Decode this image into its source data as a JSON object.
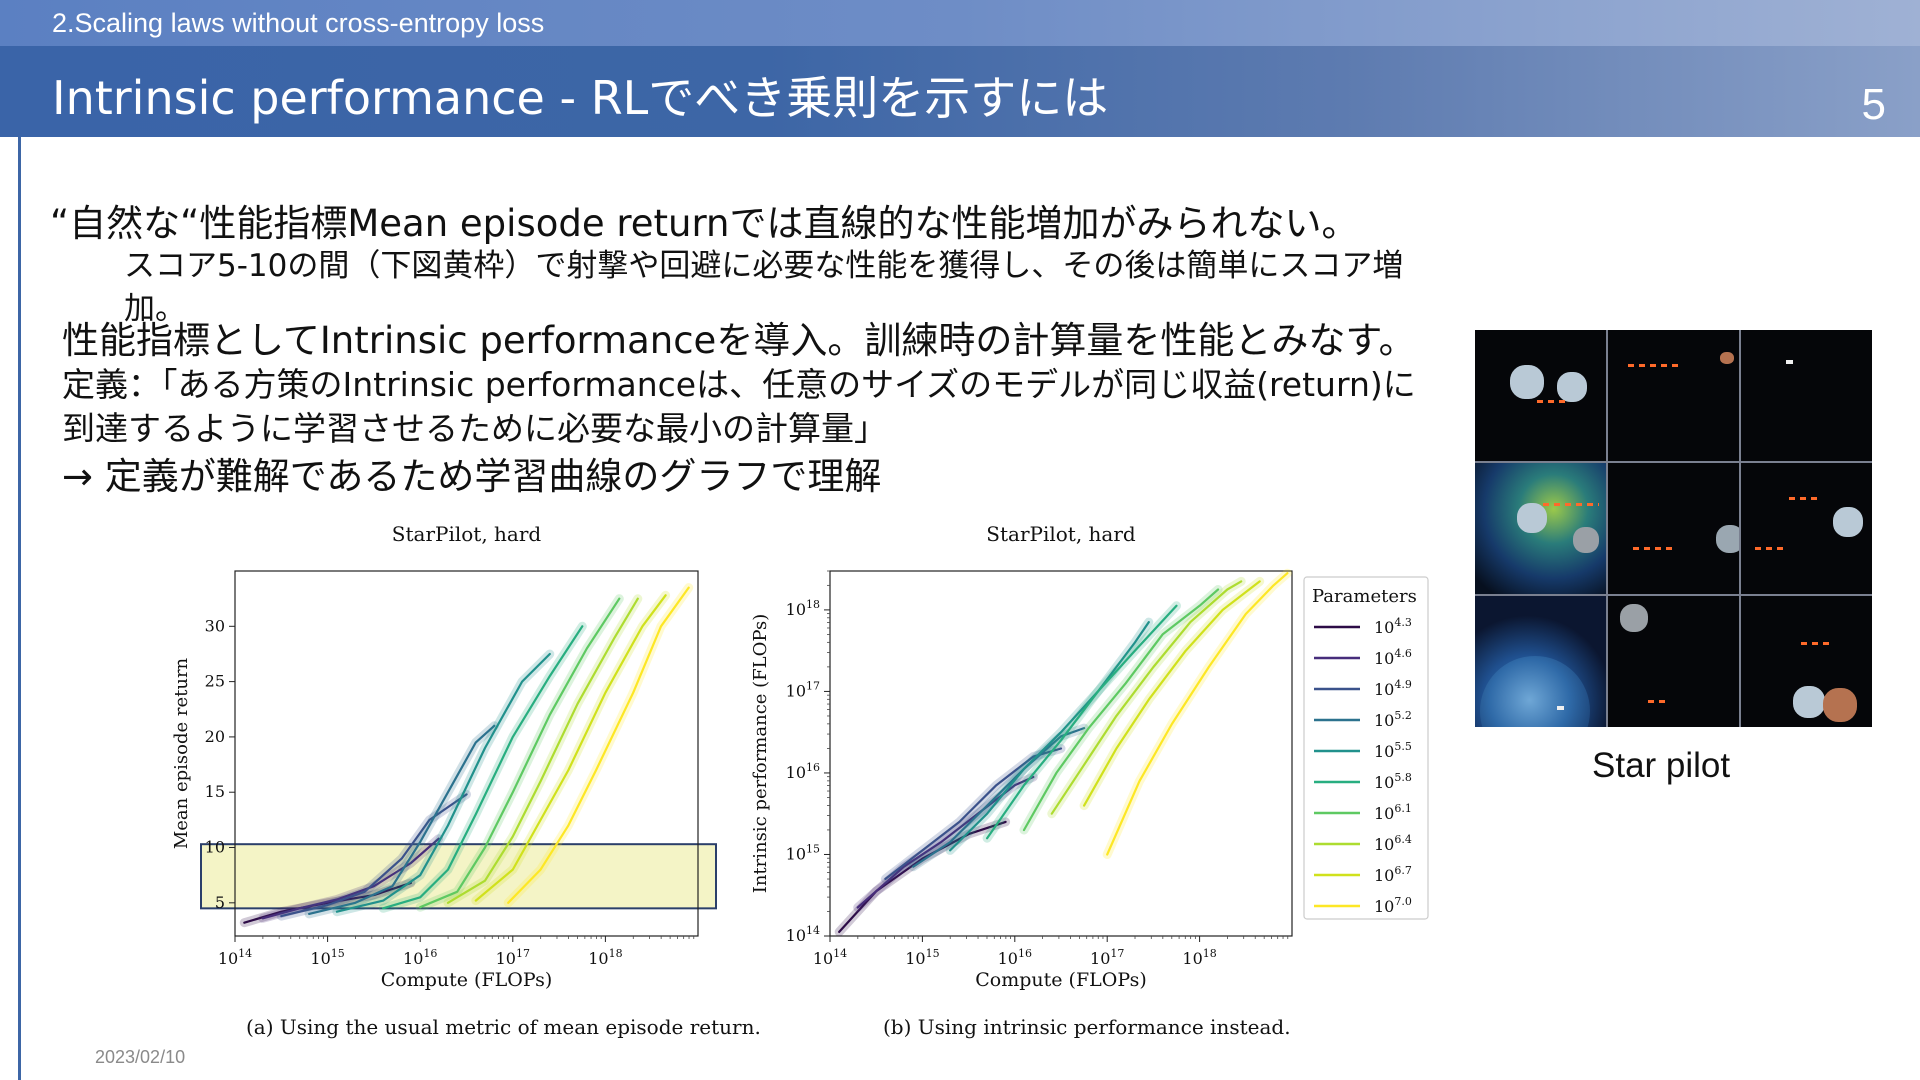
{
  "header": {
    "section": "2.Scaling laws without cross-entropy loss",
    "title": "Intrinsic performance - RLでべき乗則を示すには",
    "page_number": "5"
  },
  "body": {
    "line1": "“自然な“性能指標Mean episode returnでは直線的な性能増加がみられない。",
    "line2a": "スコア5-10の間（下図黄枠）で射撃や回避に必要な性能を獲得し、その後は簡単にスコア増",
    "line2b": "加。",
    "line3": "性能指標としてIntrinsic performanceを導入。訓練時の計算量を性能とみなす。",
    "line4": "定義：「ある方策のIntrinsic performanceは、任意のサイズのモデルが同じ収益(return)に",
    "line5": "到達するように学習させるために必要な最小の計算量」",
    "line6": "→ 定義が難解であるため学習曲線のグラフで理解"
  },
  "figure_a": {
    "caption": "(a) Using the usual metric of mean episode return."
  },
  "figure_b": {
    "caption": "(b) Using intrinsic performance instead."
  },
  "footer": {
    "date": "2023/02/10"
  },
  "game_image": {
    "label": "Star pilot"
  },
  "chart_data": [
    {
      "type": "line",
      "title": "StarPilot, hard",
      "xlabel": "Compute (FLOPs)",
      "ylabel": "Mean episode return",
      "x_scale": "log",
      "xlim": [
        100000000000000.0,
        1e+19
      ],
      "ylim": [
        2,
        35
      ],
      "x_ticks": [
        "10^14",
        "10^15",
        "10^16",
        "10^17",
        "10^18"
      ],
      "y_ticks": [
        5,
        10,
        15,
        20,
        25,
        30
      ],
      "highlight_band": {
        "y_from": 4.5,
        "y_to": 10.3,
        "color": "#f4f4c6"
      },
      "series": [
        {
          "name": "10^4.3",
          "color": "#2d0c47",
          "points": [
            [
              14.1,
              3.2
            ],
            [
              14.5,
              4.2
            ],
            [
              15.0,
              5.0
            ],
            [
              15.5,
              5.7
            ],
            [
              15.9,
              6.8
            ]
          ]
        },
        {
          "name": "10^4.6",
          "color": "#472d7b",
          "points": [
            [
              14.3,
              3.6
            ],
            [
              14.7,
              4.5
            ],
            [
              15.1,
              5.3
            ],
            [
              15.5,
              6.5
            ],
            [
              15.9,
              8.6
            ],
            [
              16.2,
              10.8
            ]
          ]
        },
        {
          "name": "10^4.9",
          "color": "#3b528b",
          "points": [
            [
              14.5,
              3.8
            ],
            [
              15.0,
              4.8
            ],
            [
              15.4,
              6.0
            ],
            [
              15.8,
              9.0
            ],
            [
              16.1,
              12.5
            ],
            [
              16.5,
              14.8
            ]
          ]
        },
        {
          "name": "10^5.2",
          "color": "#2c728e",
          "points": [
            [
              14.8,
              4.0
            ],
            [
              15.3,
              5.0
            ],
            [
              15.7,
              6.5
            ],
            [
              16.0,
              10.5
            ],
            [
              16.3,
              15.0
            ],
            [
              16.6,
              19.5
            ],
            [
              16.8,
              21.0
            ]
          ]
        },
        {
          "name": "10^5.5",
          "color": "#21918c",
          "points": [
            [
              15.1,
              4.2
            ],
            [
              15.6,
              5.2
            ],
            [
              16.0,
              7.5
            ],
            [
              16.3,
              12.0
            ],
            [
              16.7,
              19.0
            ],
            [
              17.1,
              25.0
            ],
            [
              17.4,
              27.5
            ]
          ]
        },
        {
          "name": "10^5.8",
          "color": "#28ae80",
          "points": [
            [
              15.6,
              4.5
            ],
            [
              16.0,
              5.5
            ],
            [
              16.3,
              8.0
            ],
            [
              16.6,
              13.0
            ],
            [
              17.0,
              20.0
            ],
            [
              17.4,
              25.5
            ],
            [
              17.75,
              30.0
            ]
          ]
        },
        {
          "name": "10^6.1",
          "color": "#5ec962",
          "points": [
            [
              16.0,
              4.6
            ],
            [
              16.4,
              6.0
            ],
            [
              16.7,
              10.0
            ],
            [
              17.0,
              15.0
            ],
            [
              17.4,
              22.0
            ],
            [
              17.8,
              28.0
            ],
            [
              18.15,
              32.5
            ]
          ]
        },
        {
          "name": "10^6.4",
          "color": "#addc30",
          "points": [
            [
              16.3,
              5.0
            ],
            [
              16.7,
              7.0
            ],
            [
              17.0,
              11.0
            ],
            [
              17.3,
              16.0
            ],
            [
              17.7,
              23.0
            ],
            [
              18.1,
              29.0
            ],
            [
              18.35,
              32.5
            ]
          ]
        },
        {
          "name": "10^6.7",
          "color": "#d0e11c",
          "points": [
            [
              16.6,
              5.2
            ],
            [
              17.0,
              8.0
            ],
            [
              17.3,
              12.5
            ],
            [
              17.6,
              17.0
            ],
            [
              18.0,
              24.0
            ],
            [
              18.4,
              30.0
            ],
            [
              18.65,
              32.8
            ]
          ]
        },
        {
          "name": "10^7.0",
          "color": "#fde725",
          "points": [
            [
              16.95,
              5.0
            ],
            [
              17.3,
              8.0
            ],
            [
              17.6,
              12.0
            ],
            [
              17.9,
              17.0
            ],
            [
              18.3,
              24.0
            ],
            [
              18.6,
              30.0
            ],
            [
              18.9,
              33.5
            ]
          ]
        }
      ]
    },
    {
      "type": "line",
      "title": "StarPilot, hard",
      "xlabel": "Compute (FLOPs)",
      "ylabel": "Intrinsic performance (FLOPs)",
      "x_scale": "log",
      "y_scale": "log",
      "xlim": [
        100000000000000.0,
        1e+19
      ],
      "ylim": [
        100000000000000.0,
        3e+18
      ],
      "x_ticks": [
        "10^14",
        "10^15",
        "10^16",
        "10^17",
        "10^18"
      ],
      "y_ticks": [
        "10^14",
        "10^15",
        "10^16",
        "10^17",
        "10^18"
      ],
      "legend": {
        "title": "Parameters",
        "placement": "right",
        "entries": [
          "10^4.3",
          "10^4.6",
          "10^4.9",
          "10^5.2",
          "10^5.5",
          "10^5.8",
          "10^6.1",
          "10^6.4",
          "10^6.7",
          "10^7.0"
        ]
      },
      "series": [
        {
          "name": "10^4.3",
          "color": "#2d0c47",
          "points": [
            [
              14.1,
              14.05
            ],
            [
              14.5,
              14.55
            ],
            [
              15.0,
              14.95
            ],
            [
              15.5,
              15.25
            ],
            [
              15.9,
              15.4
            ]
          ]
        },
        {
          "name": "10^4.6",
          "color": "#472d7b",
          "points": [
            [
              14.3,
              14.35
            ],
            [
              14.8,
              14.85
            ],
            [
              15.2,
              15.15
            ],
            [
              15.6,
              15.5
            ],
            [
              16.0,
              15.85
            ],
            [
              16.2,
              15.95
            ]
          ]
        },
        {
          "name": "10^4.9",
          "color": "#3b528b",
          "points": [
            [
              14.6,
              14.7
            ],
            [
              15.0,
              15.05
            ],
            [
              15.4,
              15.4
            ],
            [
              15.8,
              15.85
            ],
            [
              16.2,
              16.2
            ],
            [
              16.5,
              16.3
            ]
          ]
        },
        {
          "name": "10^5.2",
          "color": "#2c728e",
          "points": [
            [
              14.9,
              14.85
            ],
            [
              15.3,
              15.15
            ],
            [
              15.7,
              15.6
            ],
            [
              16.1,
              16.05
            ],
            [
              16.5,
              16.45
            ],
            [
              16.75,
              16.55
            ]
          ]
        },
        {
          "name": "10^5.5",
          "color": "#21918c",
          "points": [
            [
              15.3,
              15.05
            ],
            [
              15.7,
              15.5
            ],
            [
              16.1,
              16.05
            ],
            [
              16.5,
              16.5
            ],
            [
              16.9,
              17.0
            ],
            [
              17.3,
              17.6
            ],
            [
              17.45,
              17.85
            ]
          ]
        },
        {
          "name": "10^5.8",
          "color": "#28ae80",
          "points": [
            [
              15.7,
              15.2
            ],
            [
              16.1,
              15.85
            ],
            [
              16.5,
              16.4
            ],
            [
              16.9,
              17.0
            ],
            [
              17.3,
              17.5
            ],
            [
              17.75,
              18.05
            ]
          ]
        },
        {
          "name": "10^6.1",
          "color": "#5ec962",
          "points": [
            [
              16.1,
              15.3
            ],
            [
              16.45,
              16.0
            ],
            [
              16.8,
              16.55
            ],
            [
              17.2,
              17.1
            ],
            [
              17.6,
              17.7
            ],
            [
              18.0,
              18.05
            ],
            [
              18.2,
              18.25
            ]
          ]
        },
        {
          "name": "10^6.4",
          "color": "#addc30",
          "points": [
            [
              16.4,
              15.5
            ],
            [
              16.75,
              16.1
            ],
            [
              17.1,
              16.7
            ],
            [
              17.5,
              17.3
            ],
            [
              17.9,
              17.85
            ],
            [
              18.3,
              18.25
            ],
            [
              18.45,
              18.35
            ]
          ]
        },
        {
          "name": "10^6.7",
          "color": "#d0e11c",
          "points": [
            [
              16.75,
              15.6
            ],
            [
              17.1,
              16.3
            ],
            [
              17.45,
              16.9
            ],
            [
              17.85,
              17.5
            ],
            [
              18.25,
              18.0
            ],
            [
              18.65,
              18.35
            ]
          ]
        },
        {
          "name": "10^7.0",
          "color": "#fde725",
          "points": [
            [
              17.0,
              15.0
            ],
            [
              17.35,
              15.9
            ],
            [
              17.7,
              16.6
            ],
            [
              18.1,
              17.3
            ],
            [
              18.5,
              17.95
            ],
            [
              18.8,
              18.3
            ],
            [
              18.95,
              18.45
            ]
          ]
        }
      ]
    }
  ]
}
